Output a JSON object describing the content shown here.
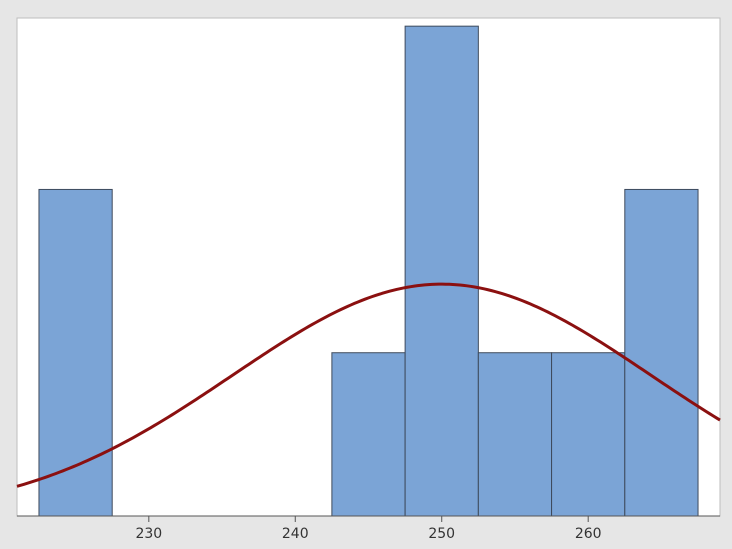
{
  "chart_data": {
    "type": "bar",
    "bins": [
      {
        "left": 222.5,
        "right": 227.5,
        "count": 2
      },
      {
        "left": 227.5,
        "right": 232.5,
        "count": 0
      },
      {
        "left": 232.5,
        "right": 237.5,
        "count": 0
      },
      {
        "left": 237.5,
        "right": 242.5,
        "count": 0
      },
      {
        "left": 242.5,
        "right": 247.5,
        "count": 1
      },
      {
        "left": 247.5,
        "right": 252.5,
        "count": 3
      },
      {
        "left": 252.5,
        "right": 257.5,
        "count": 1
      },
      {
        "left": 257.5,
        "right": 262.5,
        "count": 1
      },
      {
        "left": 262.5,
        "right": 267.5,
        "count": 2
      }
    ],
    "xlim": [
      221,
      269
    ],
    "ylim": [
      0,
      3.05
    ],
    "x_ticks": [
      230,
      240,
      250,
      260
    ],
    "fit_curve": {
      "type": "normal",
      "mean": 250,
      "sd": 14.3,
      "peak": 1.42
    },
    "title": "",
    "xlabel": "",
    "ylabel": "",
    "grid": false,
    "colors": {
      "bar_fill": "#7ba4d6",
      "bar_stroke": "#3d4a5c",
      "curve": "#8b1010",
      "plot_bg": "#ffffff",
      "frame_bg": "#e6e6e6"
    }
  }
}
